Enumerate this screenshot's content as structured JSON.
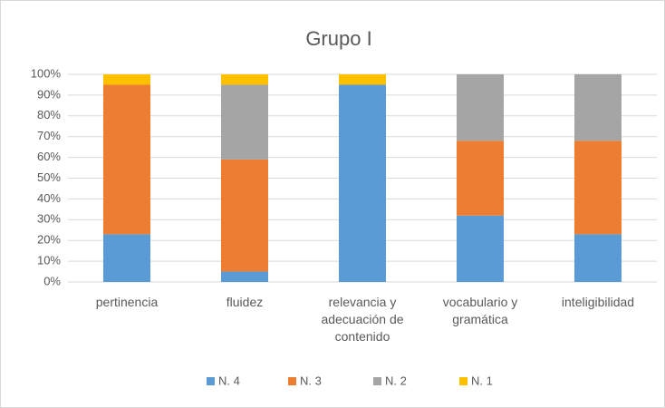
{
  "chart_data": {
    "type": "stacked_bar",
    "title": "Grupo I",
    "categories": [
      "pertinencia",
      "fluidez",
      "relevancia y adecuación de contenido",
      "vocabulario y gramática",
      "inteligibilidad"
    ],
    "series": [
      {
        "name": "N. 4",
        "color": "#5b9bd5",
        "values": [
          23,
          5,
          95,
          32,
          23
        ]
      },
      {
        "name": "N. 3",
        "color": "#ed7d31",
        "values": [
          72,
          54,
          0,
          36,
          45
        ]
      },
      {
        "name": "N. 2",
        "color": "#a5a5a5",
        "values": [
          0,
          36,
          0,
          32,
          32
        ]
      },
      {
        "name": "N. 1",
        "color": "#ffc000",
        "values": [
          5,
          5,
          5,
          0,
          0
        ]
      }
    ],
    "ylim": [
      0,
      100
    ],
    "yticks": [
      {
        "value": 0,
        "label": "0%"
      },
      {
        "value": 10,
        "label": "10%"
      },
      {
        "value": 20,
        "label": "20%"
      },
      {
        "value": 30,
        "label": "30%"
      },
      {
        "value": 40,
        "label": "40%"
      },
      {
        "value": 50,
        "label": "50%"
      },
      {
        "value": 60,
        "label": "60%"
      },
      {
        "value": 70,
        "label": "70%"
      },
      {
        "value": 80,
        "label": "80%"
      },
      {
        "value": 90,
        "label": "90%"
      },
      {
        "value": 100,
        "label": "100%"
      }
    ],
    "grid": true,
    "legend": "bottom"
  }
}
